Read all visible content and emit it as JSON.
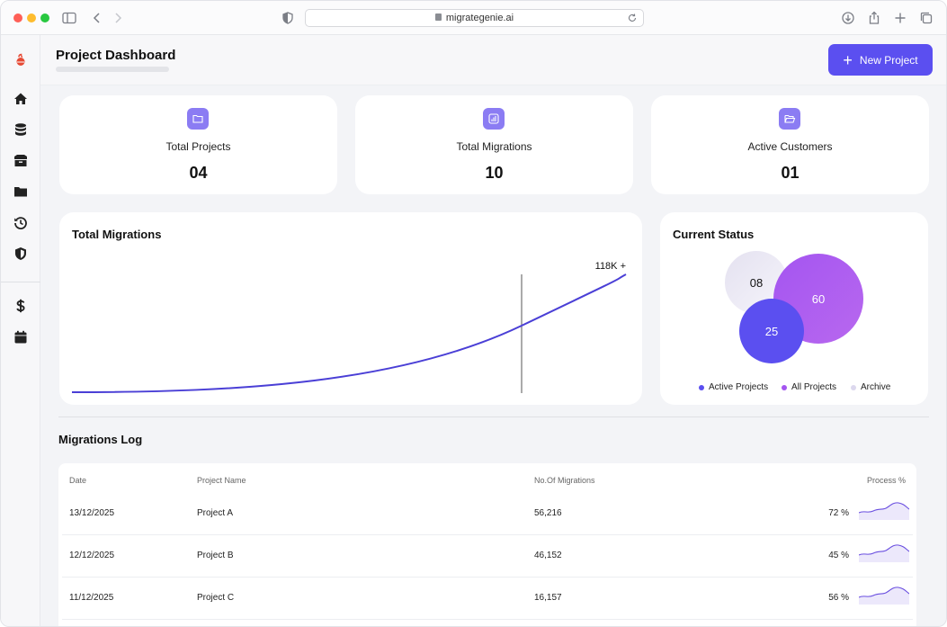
{
  "browser": {
    "url": "migrategenie.ai"
  },
  "header": {
    "title": "Project Dashboard",
    "new_button_label": "New Project"
  },
  "stats": [
    {
      "label": "Total Projects",
      "value": "04",
      "icon": "folder-icon"
    },
    {
      "label": "Total Migrations",
      "value": "10",
      "icon": "bar-chart-icon"
    },
    {
      "label": "Active Customers",
      "value": "01",
      "icon": "folder-open-icon"
    }
  ],
  "migrations_chart": {
    "title": "Total Migrations",
    "peak_label": "118K +"
  },
  "status": {
    "title": "Current Status",
    "archive": "08",
    "all_projects": "60",
    "active_projects": "25",
    "legend": [
      "Active Projects",
      "All Projects",
      "Archive"
    ],
    "colors": {
      "active": "#5b4ff0",
      "all": "#a455f0",
      "archive": "#e4e1f0"
    }
  },
  "log": {
    "title": "Migrations Log",
    "columns": [
      "Date",
      "Project Name",
      "No.Of Migrations",
      "Process %"
    ],
    "rows": [
      {
        "date": "13/12/2025",
        "project": "Project A",
        "migrations": "56,216",
        "process": "72 %"
      },
      {
        "date": "12/12/2025",
        "project": "Project B",
        "migrations": "46,152",
        "process": "45 %"
      },
      {
        "date": "11/12/2025",
        "project": "Project C",
        "migrations": "16,157",
        "process": "56 %"
      }
    ]
  },
  "sidebar": {
    "items": [
      "logo-icon",
      "home-icon",
      "database-icon",
      "box-icon",
      "folder-icon",
      "history-icon",
      "shield-icon",
      "dollar-icon",
      "calendar-icon"
    ]
  }
}
